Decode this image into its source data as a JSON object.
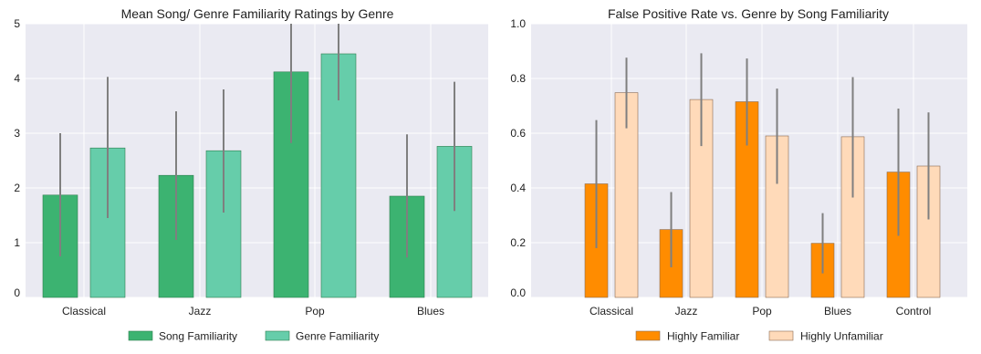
{
  "chart_data": [
    {
      "type": "bar",
      "title": "Mean Song/ Genre Familiarity Ratings by Genre",
      "categories": [
        "Classical",
        "Jazz",
        "Pop",
        "Blues"
      ],
      "ylim": [
        0,
        5
      ],
      "yticks": [
        "0",
        "1",
        "2",
        "3",
        "4",
        "5"
      ],
      "ytick_values": [
        0,
        1,
        2,
        3,
        4,
        5
      ],
      "grid": true,
      "legend_position": "bottom",
      "series": [
        {
          "name": "Song Familiarity",
          "color": "#3cb371",
          "values": [
            1.87,
            2.23,
            4.12,
            1.85
          ],
          "err_low": [
            0.75,
            1.05,
            2.82,
            0.73
          ],
          "err_high": [
            3.0,
            3.4,
            5.0,
            2.98
          ]
        },
        {
          "name": "Genre Familiarity",
          "color": "#66cdaa",
          "values": [
            2.73,
            2.68,
            4.45,
            2.76
          ],
          "err_low": [
            1.45,
            1.55,
            3.6,
            1.58
          ],
          "err_high": [
            4.03,
            3.8,
            5.0,
            3.94
          ]
        }
      ]
    },
    {
      "type": "bar",
      "title": "False Positive Rate vs. Genre by Song Familiarity",
      "categories": [
        "Classical",
        "Jazz",
        "Pop",
        "Blues",
        "Control"
      ],
      "ylim": [
        0,
        1.0
      ],
      "yticks": [
        "0.0",
        "0.2",
        "0.4",
        "0.6",
        "0.8",
        "1.0"
      ],
      "ytick_values": [
        0,
        0.2,
        0.4,
        0.6,
        0.8,
        1.0
      ],
      "grid": true,
      "legend_position": "bottom",
      "series": [
        {
          "name": "Highly Familiar",
          "color": "#ff8c00",
          "values": [
            0.415,
            0.248,
            0.715,
            0.198,
            0.458
          ],
          "err_low": [
            0.18,
            0.11,
            0.555,
            0.088,
            0.225
          ],
          "err_high": [
            0.648,
            0.385,
            0.873,
            0.308,
            0.69
          ]
        },
        {
          "name": "Highly Unfamiliar",
          "color": "#ffdab9",
          "values": [
            0.748,
            0.723,
            0.59,
            0.587,
            0.48
          ],
          "err_low": [
            0.618,
            0.553,
            0.415,
            0.365,
            0.285
          ],
          "err_high": [
            0.876,
            0.892,
            0.763,
            0.805,
            0.676
          ]
        }
      ]
    }
  ]
}
